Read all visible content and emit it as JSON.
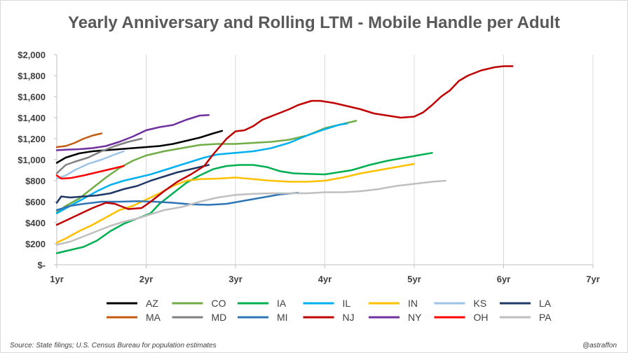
{
  "chart_data": {
    "type": "line",
    "title": "Yearly Anniversary and Rolling LTM - Mobile Handle per Adult",
    "xlabel": "",
    "ylabel": "",
    "xlim": [
      1,
      7
    ],
    "ylim": [
      0,
      2000
    ],
    "x_ticks": [
      1,
      2,
      3,
      4,
      5,
      6,
      7
    ],
    "x_tick_labels": [
      "1yr",
      "2yr",
      "3yr",
      "4yr",
      "5yr",
      "6yr",
      "7yr"
    ],
    "y_ticks": [
      0,
      200,
      400,
      600,
      800,
      1000,
      1200,
      1400,
      1600,
      1800,
      2000
    ],
    "y_tick_labels": [
      "$-",
      "$200",
      "$400",
      "$600",
      "$800",
      "$1,000",
      "$1,200",
      "$1,400",
      "$1,600",
      "$1,800",
      "$2,000"
    ],
    "grid": "vertical",
    "legend_position": "bottom",
    "series": [
      {
        "name": "AZ",
        "color": "#000000",
        "points": [
          [
            1.0,
            970
          ],
          [
            1.1,
            1020
          ],
          [
            1.25,
            1060
          ],
          [
            1.4,
            1080
          ],
          [
            1.55,
            1090
          ],
          [
            1.7,
            1100
          ],
          [
            1.85,
            1110
          ],
          [
            2.0,
            1120
          ],
          [
            2.15,
            1130
          ],
          [
            2.3,
            1150
          ],
          [
            2.45,
            1180
          ],
          [
            2.6,
            1210
          ],
          [
            2.75,
            1250
          ],
          [
            2.85,
            1275
          ]
        ]
      },
      {
        "name": "CO",
        "color": "#70ad47",
        "points": [
          [
            1.0,
            500
          ],
          [
            1.1,
            560
          ],
          [
            1.25,
            630
          ],
          [
            1.4,
            730
          ],
          [
            1.55,
            830
          ],
          [
            1.7,
            920
          ],
          [
            1.85,
            990
          ],
          [
            2.0,
            1040
          ],
          [
            2.2,
            1080
          ],
          [
            2.4,
            1110
          ],
          [
            2.6,
            1140
          ],
          [
            2.8,
            1150
          ],
          [
            3.0,
            1150
          ],
          [
            3.2,
            1160
          ],
          [
            3.4,
            1170
          ],
          [
            3.6,
            1190
          ],
          [
            3.8,
            1230
          ],
          [
            4.0,
            1300
          ],
          [
            4.2,
            1340
          ],
          [
            4.35,
            1370
          ]
        ]
      },
      {
        "name": "IA",
        "color": "#00b050",
        "points": [
          [
            1.0,
            110
          ],
          [
            1.15,
            140
          ],
          [
            1.3,
            170
          ],
          [
            1.45,
            230
          ],
          [
            1.6,
            320
          ],
          [
            1.75,
            390
          ],
          [
            1.9,
            440
          ],
          [
            2.05,
            490
          ],
          [
            2.15,
            580
          ],
          [
            2.3,
            680
          ],
          [
            2.45,
            780
          ],
          [
            2.6,
            850
          ],
          [
            2.75,
            910
          ],
          [
            2.9,
            940
          ],
          [
            3.05,
            950
          ],
          [
            3.2,
            950
          ],
          [
            3.35,
            930
          ],
          [
            3.5,
            890
          ],
          [
            3.65,
            870
          ],
          [
            3.8,
            865
          ],
          [
            4.0,
            860
          ],
          [
            4.15,
            880
          ],
          [
            4.3,
            900
          ],
          [
            4.5,
            950
          ],
          [
            4.7,
            990
          ],
          [
            4.9,
            1020
          ],
          [
            5.1,
            1050
          ],
          [
            5.2,
            1065
          ]
        ]
      },
      {
        "name": "IL",
        "color": "#00b0f0",
        "points": [
          [
            1.0,
            490
          ],
          [
            1.15,
            560
          ],
          [
            1.3,
            630
          ],
          [
            1.45,
            700
          ],
          [
            1.6,
            760
          ],
          [
            1.75,
            800
          ],
          [
            1.9,
            830
          ],
          [
            2.05,
            860
          ],
          [
            2.2,
            900
          ],
          [
            2.35,
            940
          ],
          [
            2.5,
            980
          ],
          [
            2.65,
            1020
          ],
          [
            2.8,
            1050
          ],
          [
            3.0,
            1065
          ],
          [
            3.2,
            1080
          ],
          [
            3.4,
            1110
          ],
          [
            3.6,
            1160
          ],
          [
            3.8,
            1230
          ],
          [
            4.0,
            1290
          ],
          [
            4.15,
            1330
          ],
          [
            4.25,
            1345
          ]
        ]
      },
      {
        "name": "IN",
        "color": "#ffc000",
        "points": [
          [
            1.0,
            210
          ],
          [
            1.1,
            250
          ],
          [
            1.25,
            320
          ],
          [
            1.4,
            380
          ],
          [
            1.55,
            450
          ],
          [
            1.7,
            520
          ],
          [
            1.85,
            560
          ],
          [
            2.0,
            620
          ],
          [
            2.15,
            680
          ],
          [
            2.3,
            750
          ],
          [
            2.45,
            800
          ],
          [
            2.6,
            815
          ],
          [
            2.8,
            820
          ],
          [
            3.0,
            830
          ],
          [
            3.2,
            815
          ],
          [
            3.4,
            800
          ],
          [
            3.6,
            790
          ],
          [
            3.8,
            790
          ],
          [
            4.0,
            800
          ],
          [
            4.2,
            830
          ],
          [
            4.4,
            870
          ],
          [
            4.6,
            900
          ],
          [
            4.8,
            930
          ],
          [
            5.0,
            960
          ]
        ]
      },
      {
        "name": "KS",
        "color": "#9dc3e6",
        "points": [
          [
            1.0,
            820
          ],
          [
            1.1,
            850
          ],
          [
            1.2,
            900
          ],
          [
            1.35,
            960
          ],
          [
            1.5,
            1000
          ],
          [
            1.65,
            1050
          ],
          [
            1.75,
            1080
          ]
        ]
      },
      {
        "name": "LA",
        "color": "#1f3864",
        "points": [
          [
            1.0,
            590
          ],
          [
            1.05,
            650
          ],
          [
            1.15,
            640
          ],
          [
            1.3,
            650
          ],
          [
            1.45,
            660
          ],
          [
            1.6,
            680
          ],
          [
            1.75,
            720
          ],
          [
            1.9,
            750
          ],
          [
            2.05,
            800
          ],
          [
            2.2,
            840
          ],
          [
            2.35,
            880
          ],
          [
            2.5,
            910
          ],
          [
            2.65,
            940
          ],
          [
            2.7,
            950
          ]
        ]
      },
      {
        "name": "MA",
        "color": "#c55a11",
        "points": [
          [
            1.0,
            1120
          ],
          [
            1.1,
            1130
          ],
          [
            1.2,
            1160
          ],
          [
            1.3,
            1200
          ],
          [
            1.4,
            1230
          ],
          [
            1.5,
            1250
          ]
        ]
      },
      {
        "name": "MD",
        "color": "#808080",
        "points": [
          [
            1.0,
            870
          ],
          [
            1.1,
            950
          ],
          [
            1.2,
            980
          ],
          [
            1.35,
            1020
          ],
          [
            1.5,
            1080
          ],
          [
            1.65,
            1130
          ],
          [
            1.8,
            1170
          ],
          [
            1.95,
            1200
          ]
        ]
      },
      {
        "name": "MI",
        "color": "#2e75b6",
        "points": [
          [
            1.0,
            520
          ],
          [
            1.15,
            560
          ],
          [
            1.3,
            580
          ],
          [
            1.5,
            600
          ],
          [
            1.7,
            600
          ],
          [
            1.9,
            605
          ],
          [
            2.1,
            600
          ],
          [
            2.3,
            590
          ],
          [
            2.5,
            575
          ],
          [
            2.7,
            570
          ],
          [
            2.9,
            580
          ],
          [
            3.1,
            610
          ],
          [
            3.3,
            640
          ],
          [
            3.5,
            670
          ],
          [
            3.7,
            685
          ]
        ]
      },
      {
        "name": "NJ",
        "color": "#c00000",
        "points": [
          [
            1.0,
            380
          ],
          [
            1.1,
            420
          ],
          [
            1.25,
            480
          ],
          [
            1.4,
            540
          ],
          [
            1.55,
            590
          ],
          [
            1.65,
            580
          ],
          [
            1.8,
            530
          ],
          [
            1.95,
            540
          ],
          [
            2.05,
            600
          ],
          [
            2.2,
            700
          ],
          [
            2.35,
            790
          ],
          [
            2.5,
            860
          ],
          [
            2.65,
            940
          ],
          [
            2.75,
            1050
          ],
          [
            2.9,
            1200
          ],
          [
            3.0,
            1270
          ],
          [
            3.1,
            1280
          ],
          [
            3.2,
            1320
          ],
          [
            3.3,
            1380
          ],
          [
            3.45,
            1430
          ],
          [
            3.6,
            1480
          ],
          [
            3.7,
            1520
          ],
          [
            3.85,
            1560
          ],
          [
            3.95,
            1560
          ],
          [
            4.1,
            1540
          ],
          [
            4.25,
            1510
          ],
          [
            4.4,
            1480
          ],
          [
            4.55,
            1440
          ],
          [
            4.7,
            1420
          ],
          [
            4.85,
            1400
          ],
          [
            5.0,
            1410
          ],
          [
            5.1,
            1450
          ],
          [
            5.2,
            1520
          ],
          [
            5.3,
            1600
          ],
          [
            5.4,
            1660
          ],
          [
            5.5,
            1750
          ],
          [
            5.6,
            1800
          ],
          [
            5.75,
            1850
          ],
          [
            5.9,
            1880
          ],
          [
            6.0,
            1890
          ],
          [
            6.1,
            1890
          ]
        ]
      },
      {
        "name": "NY",
        "color": "#7030a0",
        "points": [
          [
            1.0,
            1090
          ],
          [
            1.1,
            1095
          ],
          [
            1.25,
            1100
          ],
          [
            1.4,
            1110
          ],
          [
            1.55,
            1130
          ],
          [
            1.7,
            1170
          ],
          [
            1.85,
            1220
          ],
          [
            2.0,
            1280
          ],
          [
            2.15,
            1310
          ],
          [
            2.3,
            1330
          ],
          [
            2.45,
            1380
          ],
          [
            2.6,
            1420
          ],
          [
            2.7,
            1425
          ]
        ]
      },
      {
        "name": "OH",
        "color": "#ff0000",
        "points": [
          [
            1.0,
            850
          ],
          [
            1.05,
            820
          ],
          [
            1.15,
            825
          ],
          [
            1.3,
            850
          ],
          [
            1.45,
            880
          ],
          [
            1.6,
            910
          ],
          [
            1.75,
            940
          ]
        ]
      },
      {
        "name": "PA",
        "color": "#bfbfbf",
        "points": [
          [
            1.0,
            190
          ],
          [
            1.15,
            220
          ],
          [
            1.3,
            270
          ],
          [
            1.45,
            320
          ],
          [
            1.6,
            370
          ],
          [
            1.75,
            410
          ],
          [
            1.9,
            440
          ],
          [
            2.05,
            480
          ],
          [
            2.2,
            520
          ],
          [
            2.4,
            550
          ],
          [
            2.6,
            600
          ],
          [
            2.8,
            640
          ],
          [
            3.0,
            665
          ],
          [
            3.2,
            675
          ],
          [
            3.4,
            680
          ],
          [
            3.6,
            680
          ],
          [
            3.8,
            680
          ],
          [
            4.0,
            690
          ],
          [
            4.2,
            690
          ],
          [
            4.4,
            700
          ],
          [
            4.6,
            720
          ],
          [
            4.8,
            750
          ],
          [
            5.0,
            770
          ],
          [
            5.2,
            790
          ],
          [
            5.35,
            800
          ]
        ]
      }
    ]
  },
  "footer": {
    "source": "Source:  State filings; U.S. Census Bureau for population  estimates",
    "credit": "@astraffon"
  }
}
